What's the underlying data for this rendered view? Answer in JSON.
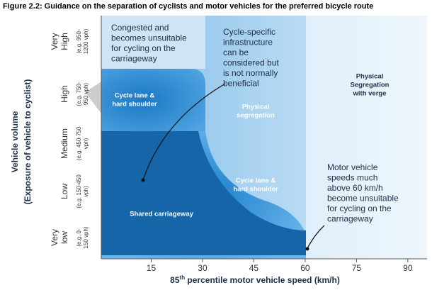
{
  "chart_data": {
    "type": "zones",
    "title": "Figure 2.2:  Guidance on the separation of cyclists and motor vehicles for the preferred bicycle route",
    "xlabel": [
      "85",
      "th",
      " percentile motor vehicle speed (km/h)"
    ],
    "ylabel": [
      "Vehicle volume",
      "(Exposure of vehicle to cyclist)"
    ],
    "xlim": [
      0,
      95
    ],
    "xticks": [
      15,
      30,
      45,
      60,
      75,
      90
    ],
    "categories": [
      {
        "name": [
          "Very",
          "High"
        ],
        "sub": [
          "(e.g. 950-",
          "1200 vph)"
        ]
      },
      {
        "name": [
          "High"
        ],
        "sub": [
          "(e.g. 750-",
          "950 vph)"
        ]
      },
      {
        "name": [
          "Medium"
        ],
        "sub": [
          "(e.g. 450-750",
          "vph)"
        ]
      },
      {
        "name": [
          "Low"
        ],
        "sub": [
          "(e.g. 150-450",
          "vph)"
        ]
      },
      {
        "name": [
          "Very",
          "low"
        ],
        "sub": [
          "(e.g. 0-",
          "150 vph)"
        ]
      }
    ],
    "zones": [
      {
        "lines": [
          "Cycle lane &",
          "hard shoulder"
        ]
      },
      {
        "lines": [
          "Physical",
          "segregation"
        ]
      },
      {
        "lines": [
          "Physical",
          "Segregation",
          "with verge"
        ]
      },
      {
        "lines": [
          "Cycle lane &",
          "hard shoulder"
        ]
      },
      {
        "lines": [
          "Shared carriageway"
        ]
      }
    ],
    "annotations": [
      {
        "lines": [
          "Congested and",
          "becomes unsuitable",
          "for cycling on the",
          "carriageway"
        ]
      },
      {
        "lines": [
          "Cycle-specific",
          "infrastructure",
          "can be",
          "considered but",
          "is not normally",
          "beneficial"
        ]
      },
      {
        "lines": [
          "Motor vehicle",
          "speeds much",
          "above 60 km/h",
          "become unsuitable",
          "for cycling on the",
          "carriageway"
        ]
      }
    ]
  }
}
